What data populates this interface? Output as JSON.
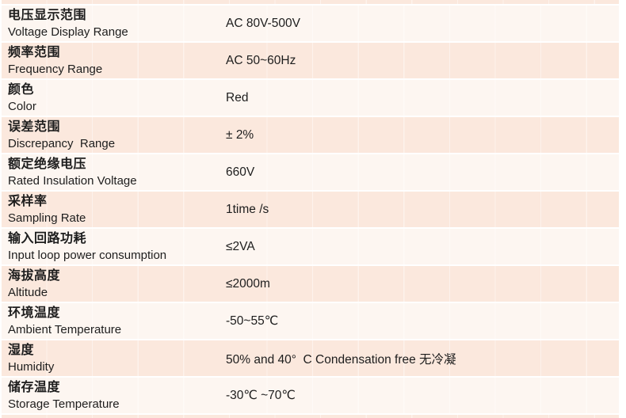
{
  "table": {
    "colors": {
      "row_odd": "#fdf6f1",
      "row_even": "#fbe8dd",
      "separator": "#ffffff",
      "text": "#1d1d1d"
    },
    "rows": [
      {
        "label_zh": "电压显示范围",
        "label_en": "Voltage Display Range",
        "value": "AC 80V-500V"
      },
      {
        "label_zh": "频率范围",
        "label_en": "Frequency Range",
        "value": "AC 50~60Hz"
      },
      {
        "label_zh": "颜色",
        "label_en": "Color",
        "value": "Red"
      },
      {
        "label_zh": "误差范围",
        "label_en": "Discrepancy  Range",
        "value": "± 2%"
      },
      {
        "label_zh": "额定绝缘电压",
        "label_en": "Rated Insulation Voltage",
        "value": "660V"
      },
      {
        "label_zh": "采样率",
        "label_en": "Sampling Rate",
        "value": "1time /s"
      },
      {
        "label_zh": "输入回路功耗",
        "label_en": "Input loop power consumption",
        "value": "≤2VA"
      },
      {
        "label_zh": "海拔高度",
        "label_en": "Altitude",
        "value": "≤2000m"
      },
      {
        "label_zh": "环境温度",
        "label_en": "Ambient Temperature",
        "value": "-50~55℃"
      },
      {
        "label_zh": "湿度",
        "label_en": "Humidity",
        "value": "50% and 40°  C Condensation free 无冷凝"
      },
      {
        "label_zh": "储存温度",
        "label_en": "Storage Temperature",
        "value": "-30℃ ~70℃"
      }
    ]
  }
}
